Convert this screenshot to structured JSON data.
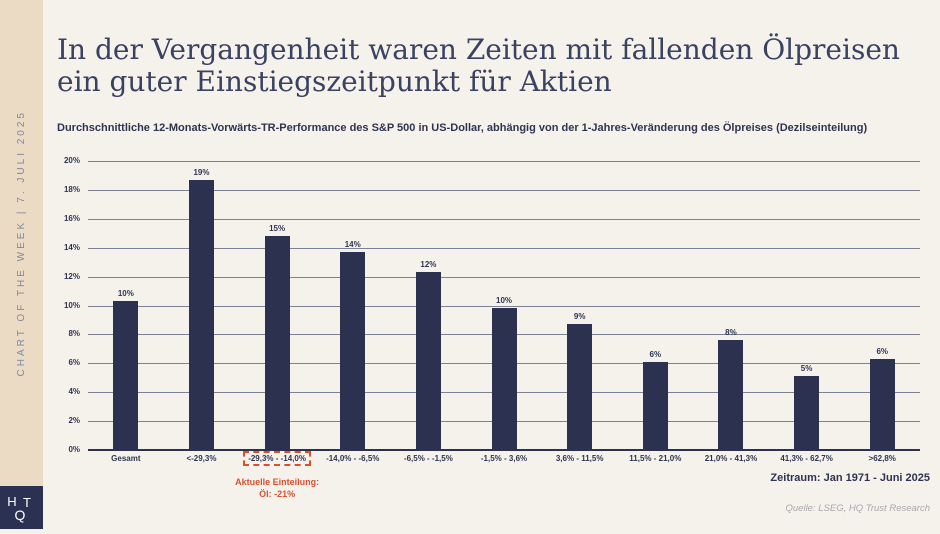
{
  "sidebar": {
    "vertical_label": "CHART OF THE WEEK | 7. JULI 2025",
    "logo": {
      "letter_h": "H",
      "letter_t": "T",
      "letter_q": "Q"
    }
  },
  "header": {
    "title_line1": "In der Vergangenheit waren Zeiten mit fallenden Ölpreisen",
    "title_line2": "ein guter Einstiegszeitpunkt für Aktien",
    "subtitle": "Durchschnittliche 12-Monats-Vorwärts-TR-Performance des S&P 500 in US-Dollar, abhängig von der 1-Jahres-Veränderung des Ölpreises (Dezilseinteilung)"
  },
  "chart_data": {
    "type": "bar",
    "title": "Durchschnittliche 12-Monats-Vorwärts-TR-Performance des S&P 500, abhängig von der 1-Jahres-Veränderung des Ölpreises",
    "categories": [
      "Gesamt",
      "<-29,3%",
      "-29,3% - -14,0%",
      "-14,0% - -6,5%",
      "-6,5% - -1,5%",
      "-1,5% - 3,6%",
      "3,6% - 11,5%",
      "11,5% - 21,0%",
      "21,0% - 41,3%",
      "41,3% - 62,7%",
      ">62,8%"
    ],
    "values": [
      10.3,
      18.7,
      14.8,
      13.7,
      12.3,
      9.8,
      8.7,
      6.1,
      7.6,
      5.1,
      6.3
    ],
    "value_labels": [
      "10%",
      "19%",
      "15%",
      "14%",
      "12%",
      "10%",
      "9%",
      "6%",
      "8%",
      "5%",
      "6%"
    ],
    "xlabel": "1-Jahres-Veränderung des Ölpreises (Dezilseinteilung)",
    "ylabel": "12-Monats-Vorwärts-TR-Performance",
    "ylim": [
      0,
      20
    ],
    "y_tick_step": 2,
    "y_tick_suffix": "%",
    "grid": true,
    "legend": false,
    "highlight_index": 2,
    "highlight_annotation_line1": "Aktuelle Einteilung:",
    "highlight_annotation_line2": "Öl: -21%"
  },
  "footer": {
    "period": "Zeitraum: Jan 1971 - Juni 2025",
    "source": "Quelle: LSEG, HQ Trust Research"
  },
  "colors": {
    "bar": "#2D3150",
    "accent_red": "#D9502F",
    "sidebar_bg": "#EBDBC4",
    "page_bg": "#F5F2EC",
    "gridline": "#7D8196",
    "title_text": "#3A4161",
    "source_text": "#A7A8AE"
  }
}
